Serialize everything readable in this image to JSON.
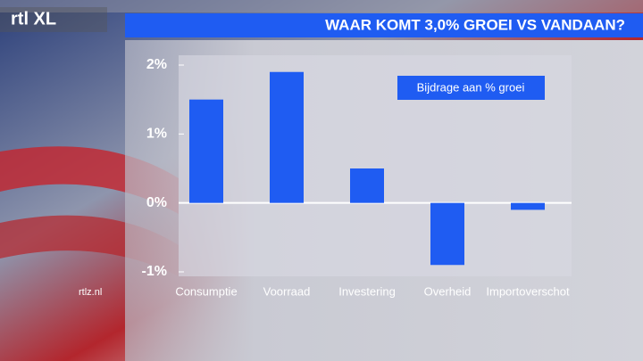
{
  "logo": "rtl XL",
  "site": "rtlz.nl",
  "chart_data": {
    "type": "bar",
    "title": "WAAR KOMT 3,0% GROEI VS VANDAAN?",
    "categories": [
      "Consumptie",
      "Voorraad",
      "Investering",
      "Overheid",
      "Importoverschot"
    ],
    "series": [
      {
        "name": "Bijdrage aan % groei",
        "color": "#1f5cf2",
        "values": [
          1.5,
          1.9,
          0.5,
          -0.9,
          -0.1
        ]
      }
    ],
    "ylim": [
      -1,
      2
    ],
    "yticks": [
      {
        "value": -1,
        "label": "-1%"
      },
      {
        "value": 0,
        "label": "0%"
      },
      {
        "value": 1,
        "label": "1%"
      },
      {
        "value": 2,
        "label": "2%"
      }
    ],
    "legend": "top-right"
  }
}
